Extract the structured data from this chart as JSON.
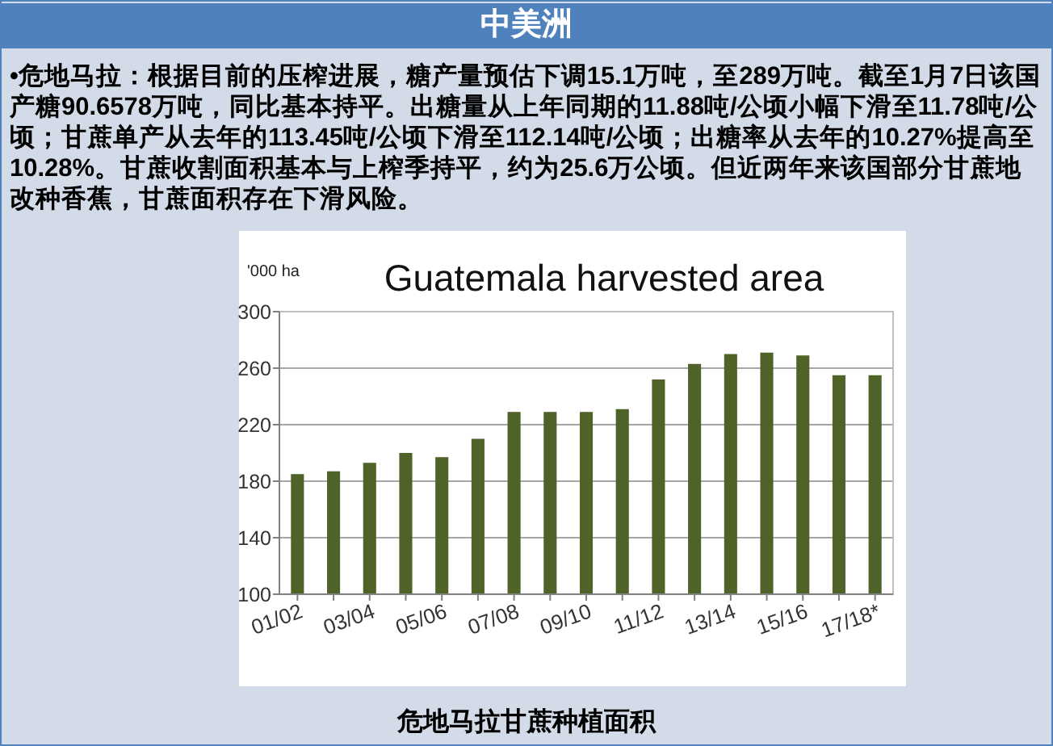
{
  "chart_data": {
    "type": "bar",
    "title": "Guatemala harvested area",
    "ylabel": "'000 ha",
    "annotations": [
      "中美洲",
      "•危地马拉：根据目前的压榨进展，糖产量预估下调15.1万吨，至289万吨。截至1月7日该国产糖90.6578万吨，同比基本持平。出糖量从上年同期的11.88吨/公顷小幅下滑至11.78吨/公顷；甘蔗单产从去年的113.45吨/公顷下滑至112.14吨/公顷；出糖率从去年的10.27%提高至10.28%。甘蔗收割面积基本与上榨季持平，约为25.6万公顷。但近两年来该国部分甘蔗地改种香蕉，甘蔗面积存在下滑风险。",
      "危地马拉甘蔗种植面积"
    ],
    "categories": [
      "01/02",
      null,
      "03/04",
      null,
      "05/06",
      null,
      "07/08",
      null,
      "09/10",
      null,
      "11/12",
      null,
      "13/14",
      null,
      "15/16",
      null,
      "17/18*"
    ],
    "values": [
      185,
      187,
      193,
      200,
      197,
      210,
      229,
      229,
      229,
      231,
      252,
      263,
      270,
      271,
      269,
      255,
      255
    ],
    "color": "#4f6228",
    "ylim": [
      100,
      300
    ],
    "yticks": [
      100,
      140,
      180,
      220,
      260,
      300
    ],
    "grid": "y"
  }
}
